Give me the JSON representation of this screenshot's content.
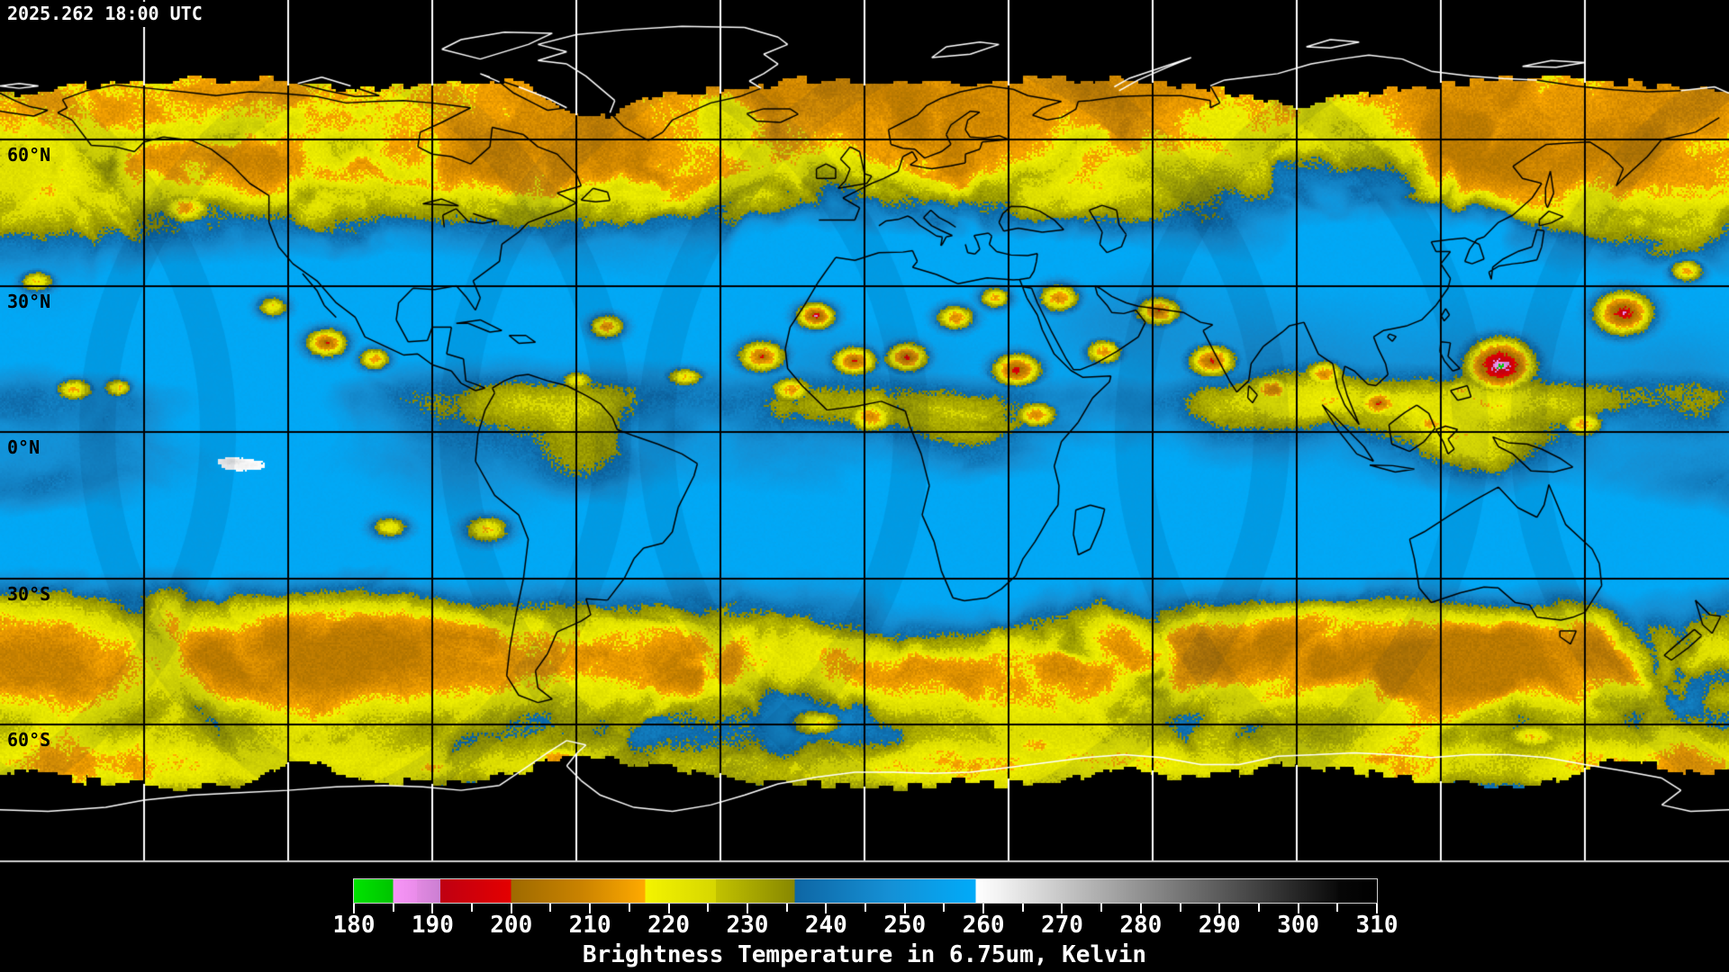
{
  "header": {
    "timestamp": "2025.262 18:00 UTC"
  },
  "map": {
    "latitude_labels": [
      {
        "text": "60°N",
        "lat": 60
      },
      {
        "text": "30°N",
        "lat": 30
      },
      {
        "text": "0°N",
        "lat": 0
      },
      {
        "text": "30°S",
        "lat": -30
      },
      {
        "text": "60°S",
        "lat": -60
      }
    ],
    "grid": {
      "lat_lines_deg": [
        60,
        30,
        0,
        -30,
        -60
      ],
      "lon_lines_deg": [
        -150,
        -120,
        -90,
        -60,
        -30,
        0,
        30,
        60,
        90,
        120,
        150
      ],
      "color_over_data": "#000000",
      "color_over_nodata": "#ffffff"
    },
    "colors": {
      "no_data_background": "#000000",
      "coastline_on_black": "#ffffff",
      "coastline_on_data": "#000000",
      "dry_blue": "#1e96d6",
      "moist_yellow": "#dcdc00",
      "cold_cloud_orange": "#f29500",
      "very_cold_red": "#df0505",
      "coldest_violet": "#ef92ef",
      "warm_surface_white": "#ffffff",
      "map_bottom_border": "#cfcfcf"
    }
  },
  "colorbar": {
    "title": "Brightness Temperature in 6.75um, Kelvin",
    "unit": "Kelvin",
    "min_kelvin": 180,
    "max_kelvin": 310,
    "major_tick_step": 10,
    "minor_tick_step": 5,
    "tick_labels": [
      "180",
      "190",
      "200",
      "210",
      "220",
      "230",
      "240",
      "250",
      "260",
      "270",
      "280",
      "290",
      "300",
      "310"
    ],
    "segments": [
      {
        "from": 180,
        "to": 185,
        "c0": "#00e400",
        "c1": "#00c400"
      },
      {
        "from": 185,
        "to": 188,
        "c0": "#f795f7",
        "c1": "#ea8cea"
      },
      {
        "from": 188,
        "to": 191,
        "c0": "#e289e2",
        "c1": "#cb7fd2"
      },
      {
        "from": 191,
        "to": 200,
        "c0": "#bf0012",
        "c1": "#e40000"
      },
      {
        "from": 200,
        "to": 209,
        "c0": "#9e6a00",
        "c1": "#ca8300"
      },
      {
        "from": 209,
        "to": 217,
        "c0": "#ca8300",
        "c1": "#ffaa00"
      },
      {
        "from": 217,
        "to": 226,
        "c0": "#f4f400",
        "c1": "#d6d600"
      },
      {
        "from": 226,
        "to": 236,
        "c0": "#c2c200",
        "c1": "#878700"
      },
      {
        "from": 236,
        "to": 248,
        "c0": "#0e66a4",
        "c1": "#1590d5"
      },
      {
        "from": 248,
        "to": 259,
        "c0": "#1590d5",
        "c1": "#00abf9"
      },
      {
        "from": 259,
        "to": 262,
        "c0": "#ffffff",
        "c1": "#f2f2f2"
      },
      {
        "from": 262,
        "to": 305,
        "c0": "#f2f2f2",
        "c1": "#0a0a0a"
      },
      {
        "from": 305,
        "to": 310,
        "c0": "#070707",
        "c1": "#000000"
      }
    ]
  }
}
